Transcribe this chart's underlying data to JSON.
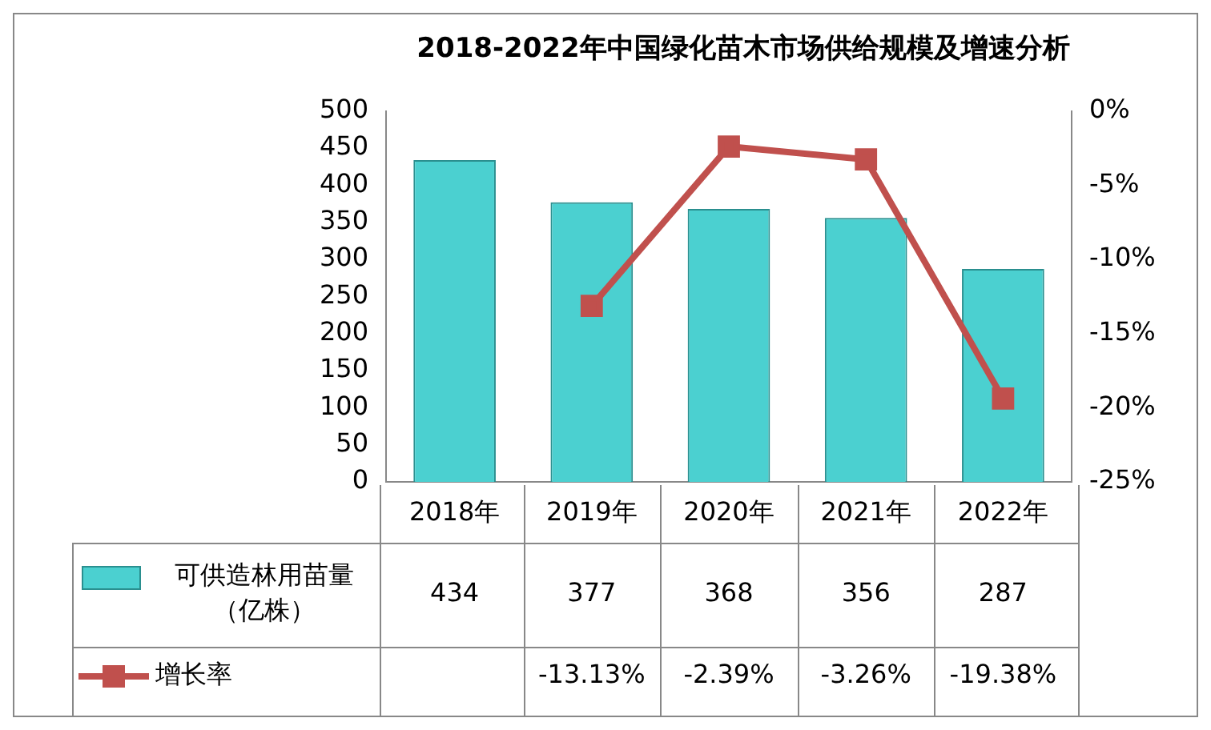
{
  "chart_data": {
    "type": "bar",
    "title": "2018-2022年中国绿化苗木市场供给规模及增速分析",
    "categories": [
      "2018年",
      "2019年",
      "2020年",
      "2021年",
      "2022年"
    ],
    "series": [
      {
        "name": "可供造林用苗量（亿株）",
        "color": "#4bd0d0",
        "values": [
          434,
          377,
          368,
          356,
          287
        ],
        "value_labels": [
          "434",
          "377",
          "368",
          "356",
          "287"
        ]
      },
      {
        "name": "增长率",
        "type": "line",
        "axis": "y2",
        "color": "#c0504d",
        "values": [
          null,
          -13.13,
          -2.39,
          -3.26,
          -19.38
        ],
        "value_labels": [
          null,
          "-13.13%",
          "-2.39%",
          "-3.26%",
          "-19.38%"
        ]
      }
    ],
    "ylim": [
      0,
      500
    ],
    "yticks": [
      0,
      50,
      100,
      150,
      200,
      250,
      300,
      350,
      400,
      450,
      500
    ],
    "y2lim": [
      -25,
      0
    ],
    "y2ticks": [
      {
        "value": -25,
        "label": "-25%"
      },
      {
        "value": -20,
        "label": "-20%"
      },
      {
        "value": -15,
        "label": "-15%"
      },
      {
        "value": -10,
        "label": "-10%"
      },
      {
        "value": -5,
        "label": "-5%"
      },
      {
        "value": 0,
        "label": "0%"
      }
    ],
    "grid": false,
    "legend": "bottom left",
    "marker": "square",
    "line_style": "solid"
  }
}
